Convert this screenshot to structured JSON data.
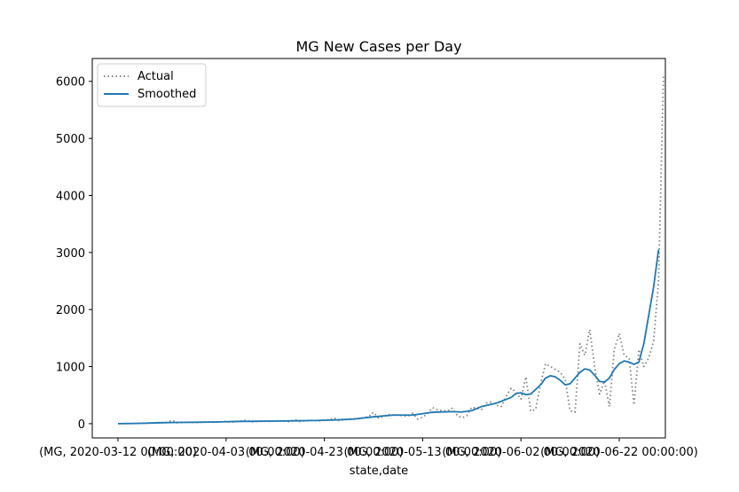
{
  "chart_data": {
    "type": "line",
    "title": "MG New Cases per Day",
    "xlabel": "state,date",
    "ylabel": "",
    "x_start": "2020-03-12",
    "x_end": "2020-06-24",
    "xticks": [
      {
        "date": "2020-03-12",
        "label": "(MG, 2020-03-12 00:00:00)"
      },
      {
        "date": "2020-04-03",
        "label": "(MG, 2020-04-03 00:00:00)"
      },
      {
        "date": "2020-04-23",
        "label": "(MG, 2020-04-23 00:00:00)"
      },
      {
        "date": "2020-05-13",
        "label": "(MG, 2020-05-13 00:00:00)"
      },
      {
        "date": "2020-06-02",
        "label": "(MG, 2020-06-02 00:00:00)"
      },
      {
        "date": "2020-06-22",
        "label": "(MG, 2020-06-22 00:00:00)"
      }
    ],
    "yticks": [
      0,
      1000,
      2000,
      3000,
      4000,
      5000,
      6000
    ],
    "ylim": [
      -250,
      6400
    ],
    "grid": false,
    "legend_position": "top-left",
    "series": [
      {
        "name": "Actual",
        "style": "dotted",
        "color": "#808080",
        "points": [
          [
            "2020-03-12",
            0
          ],
          [
            "2020-03-14",
            2
          ],
          [
            "2020-03-16",
            5
          ],
          [
            "2020-03-18",
            8
          ],
          [
            "2020-03-20",
            12
          ],
          [
            "2020-03-22",
            20
          ],
          [
            "2020-03-23",
            60
          ],
          [
            "2020-03-24",
            15
          ],
          [
            "2020-03-26",
            25
          ],
          [
            "2020-03-28",
            20
          ],
          [
            "2020-03-30",
            30
          ],
          [
            "2020-04-01",
            25
          ],
          [
            "2020-04-03",
            40
          ],
          [
            "2020-04-04",
            25
          ],
          [
            "2020-04-06",
            45
          ],
          [
            "2020-04-07",
            60
          ],
          [
            "2020-04-08",
            30
          ],
          [
            "2020-04-10",
            45
          ],
          [
            "2020-04-12",
            40
          ],
          [
            "2020-04-14",
            50
          ],
          [
            "2020-04-16",
            35
          ],
          [
            "2020-04-17",
            70
          ],
          [
            "2020-04-18",
            40
          ],
          [
            "2020-04-20",
            60
          ],
          [
            "2020-04-22",
            50
          ],
          [
            "2020-04-24",
            70
          ],
          [
            "2020-04-25",
            100
          ],
          [
            "2020-04-26",
            55
          ],
          [
            "2020-04-28",
            80
          ],
          [
            "2020-04-30",
            90
          ],
          [
            "2020-05-02",
            120
          ],
          [
            "2020-05-03",
            200
          ],
          [
            "2020-05-04",
            100
          ],
          [
            "2020-05-06",
            160
          ],
          [
            "2020-05-08",
            150
          ],
          [
            "2020-05-10",
            130
          ],
          [
            "2020-05-11",
            180
          ],
          [
            "2020-05-12",
            80
          ],
          [
            "2020-05-13",
            110
          ],
          [
            "2020-05-14",
            180
          ],
          [
            "2020-05-15",
            280
          ],
          [
            "2020-05-16",
            240
          ],
          [
            "2020-05-18",
            220
          ],
          [
            "2020-05-19",
            270
          ],
          [
            "2020-05-20",
            150
          ],
          [
            "2020-05-21",
            100
          ],
          [
            "2020-05-22",
            140
          ],
          [
            "2020-05-23",
            290
          ],
          [
            "2020-05-25",
            250
          ],
          [
            "2020-05-26",
            360
          ],
          [
            "2020-05-27",
            380
          ],
          [
            "2020-05-28",
            320
          ],
          [
            "2020-05-29",
            300
          ],
          [
            "2020-05-30",
            480
          ],
          [
            "2020-05-31",
            620
          ],
          [
            "2020-06-01",
            550
          ],
          [
            "2020-06-02",
            430
          ],
          [
            "2020-06-03",
            820
          ],
          [
            "2020-06-04",
            220
          ],
          [
            "2020-06-05",
            250
          ],
          [
            "2020-06-06",
            700
          ],
          [
            "2020-06-07",
            1050
          ],
          [
            "2020-06-08",
            1000
          ],
          [
            "2020-06-09",
            950
          ],
          [
            "2020-06-10",
            900
          ],
          [
            "2020-06-11",
            780
          ],
          [
            "2020-06-12",
            230
          ],
          [
            "2020-06-13",
            200
          ],
          [
            "2020-06-14",
            1400
          ],
          [
            "2020-06-15",
            1200
          ],
          [
            "2020-06-16",
            1650
          ],
          [
            "2020-06-17",
            1000
          ],
          [
            "2020-06-18",
            520
          ],
          [
            "2020-06-19",
            750
          ],
          [
            "2020-06-20",
            300
          ],
          [
            "2020-06-21",
            1300
          ],
          [
            "2020-06-22",
            1580
          ],
          [
            "2020-06-23",
            1200
          ],
          [
            "2020-06-24",
            1150
          ],
          [
            "2020-06-25",
            330
          ],
          [
            "2020-06-26",
            1300
          ],
          [
            "2020-06-27",
            1000
          ],
          [
            "2020-06-28",
            1150
          ],
          [
            "2020-06-29",
            1450
          ],
          [
            "2020-06-30",
            2500
          ],
          [
            "2020-07-01",
            6100
          ]
        ]
      },
      {
        "name": "Smoothed",
        "style": "solid",
        "color": "#1f77b4",
        "points": [
          [
            "2020-03-12",
            0
          ],
          [
            "2020-03-16",
            5
          ],
          [
            "2020-03-20",
            15
          ],
          [
            "2020-03-24",
            22
          ],
          [
            "2020-03-28",
            25
          ],
          [
            "2020-04-01",
            30
          ],
          [
            "2020-04-05",
            38
          ],
          [
            "2020-04-09",
            42
          ],
          [
            "2020-04-13",
            45
          ],
          [
            "2020-04-17",
            50
          ],
          [
            "2020-04-21",
            55
          ],
          [
            "2020-04-25",
            65
          ],
          [
            "2020-04-29",
            80
          ],
          [
            "2020-05-03",
            120
          ],
          [
            "2020-05-07",
            150
          ],
          [
            "2020-05-11",
            150
          ],
          [
            "2020-05-15",
            200
          ],
          [
            "2020-05-19",
            210
          ],
          [
            "2020-05-21",
            205
          ],
          [
            "2020-05-23",
            230
          ],
          [
            "2020-05-25",
            300
          ],
          [
            "2020-05-28",
            360
          ],
          [
            "2020-05-31",
            460
          ],
          [
            "2020-06-01",
            530
          ],
          [
            "2020-06-02",
            540
          ],
          [
            "2020-06-03",
            510
          ],
          [
            "2020-06-04",
            520
          ],
          [
            "2020-06-06",
            680
          ],
          [
            "2020-06-07",
            800
          ],
          [
            "2020-06-08",
            840
          ],
          [
            "2020-06-09",
            820
          ],
          [
            "2020-06-10",
            760
          ],
          [
            "2020-06-11",
            680
          ],
          [
            "2020-06-12",
            700
          ],
          [
            "2020-06-13",
            800
          ],
          [
            "2020-06-14",
            900
          ],
          [
            "2020-06-15",
            960
          ],
          [
            "2020-06-16",
            940
          ],
          [
            "2020-06-17",
            850
          ],
          [
            "2020-06-18",
            740
          ],
          [
            "2020-06-19",
            730
          ],
          [
            "2020-06-20",
            800
          ],
          [
            "2020-06-21",
            950
          ],
          [
            "2020-06-22",
            1050
          ],
          [
            "2020-06-23",
            1100
          ],
          [
            "2020-06-24",
            1080
          ],
          [
            "2020-06-25",
            1040
          ],
          [
            "2020-06-26",
            1080
          ],
          [
            "2020-06-27",
            1400
          ],
          [
            "2020-06-28",
            1900
          ],
          [
            "2020-06-29",
            2400
          ],
          [
            "2020-06-30",
            3050
          ]
        ]
      }
    ]
  }
}
